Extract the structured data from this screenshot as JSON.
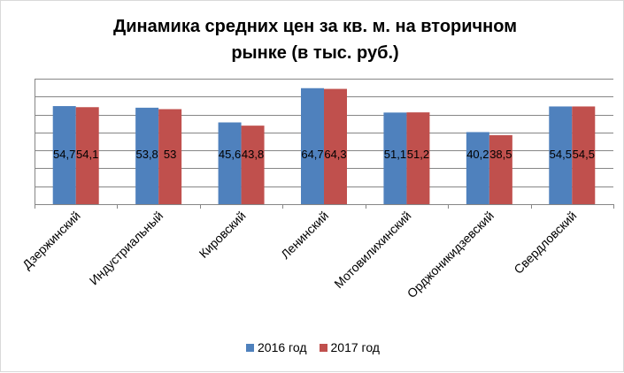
{
  "chart_data": {
    "type": "bar",
    "title": "Динамика средних цен за кв. м. на вторичном\nрынке (в тыс. руб.)",
    "categories": [
      "Дзержинский",
      "Индустриальный",
      "Кировский",
      "Ленинский",
      "Мотовилихинский",
      "Орджоникидзевский",
      "Свердловский"
    ],
    "series": [
      {
        "name": "2016 год",
        "color": "#4f81bd",
        "values": [
          54.7,
          53.8,
          45.6,
          64.7,
          51.1,
          40.2,
          54.5
        ],
        "labels": [
          "54,7",
          "53,8",
          "45,6",
          "64,7",
          "51,1",
          "40,2",
          "54,5"
        ]
      },
      {
        "name": "2017 год",
        "color": "#c0504d",
        "values": [
          54.1,
          53,
          43.8,
          64.3,
          51.2,
          38.5,
          54.5
        ],
        "labels": [
          "54,1",
          "53",
          "43,8",
          "64,3",
          "51,2",
          "38,5",
          "54,5"
        ]
      }
    ],
    "ylim": [
      0,
      70
    ],
    "y_tick_step": 10,
    "y_tick_labels_shown": false,
    "grid": true,
    "legend_position": "bottom",
    "xlabel": "",
    "ylabel": ""
  }
}
